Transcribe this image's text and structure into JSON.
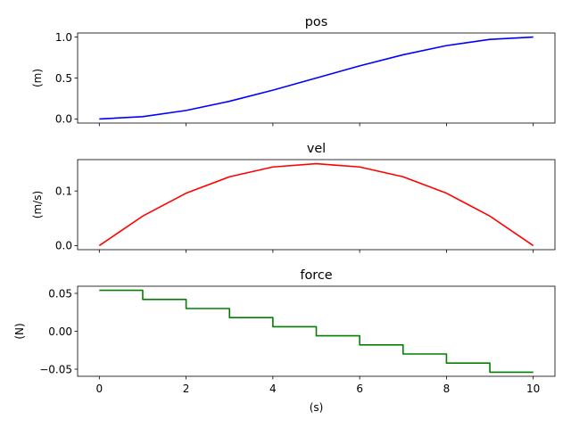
{
  "chart_data": [
    {
      "type": "line",
      "title": "pos",
      "ylabel": "(m)",
      "xlabel": "",
      "color": "#0000ff",
      "x": [
        0,
        1,
        2,
        3,
        4,
        5,
        6,
        7,
        8,
        9,
        10
      ],
      "values": [
        0.0,
        0.028,
        0.104,
        0.216,
        0.352,
        0.5,
        0.648,
        0.784,
        0.896,
        0.972,
        1.0
      ],
      "xlim": [
        -0.5,
        10.5
      ],
      "ylim": [
        -0.05,
        1.05
      ],
      "yticks": [
        0.0,
        0.5,
        1.0
      ],
      "ytick_labels": [
        "0.0",
        "0.5",
        "1.0"
      ],
      "show_x_tick_labels": false
    },
    {
      "type": "line",
      "title": "vel",
      "ylabel": "(m/s)",
      "xlabel": "",
      "color": "#ff0000",
      "x": [
        0,
        1,
        2,
        3,
        4,
        5,
        6,
        7,
        8,
        9,
        10
      ],
      "values": [
        0.0,
        0.054,
        0.096,
        0.126,
        0.144,
        0.15,
        0.144,
        0.126,
        0.096,
        0.054,
        0.0
      ],
      "xlim": [
        -0.5,
        10.5
      ],
      "ylim": [
        -0.0075,
        0.1575
      ],
      "yticks": [
        0.0,
        0.1
      ],
      "ytick_labels": [
        "0.0",
        "0.1"
      ],
      "show_x_tick_labels": false
    },
    {
      "type": "line",
      "drawstyle": "steps-post",
      "title": "force",
      "ylabel": "(N)",
      "xlabel": "(s)",
      "color": "#008000",
      "x": [
        0,
        1,
        2,
        3,
        4,
        5,
        6,
        7,
        8,
        9,
        10
      ],
      "values": [
        0.054,
        0.042,
        0.03,
        0.018,
        0.006,
        -0.006,
        -0.018,
        -0.03,
        -0.042,
        -0.054,
        -0.054
      ],
      "xlim": [
        -0.5,
        10.5
      ],
      "ylim": [
        -0.0594,
        0.0594
      ],
      "yticks": [
        -0.05,
        0.0,
        0.05
      ],
      "ytick_labels": [
        "−0.05",
        "0.00",
        "0.05"
      ],
      "xticks": [
        0,
        2,
        4,
        6,
        8,
        10
      ],
      "xtick_labels": [
        "0",
        "2",
        "4",
        "6",
        "8",
        "10"
      ],
      "show_x_tick_labels": true
    }
  ]
}
